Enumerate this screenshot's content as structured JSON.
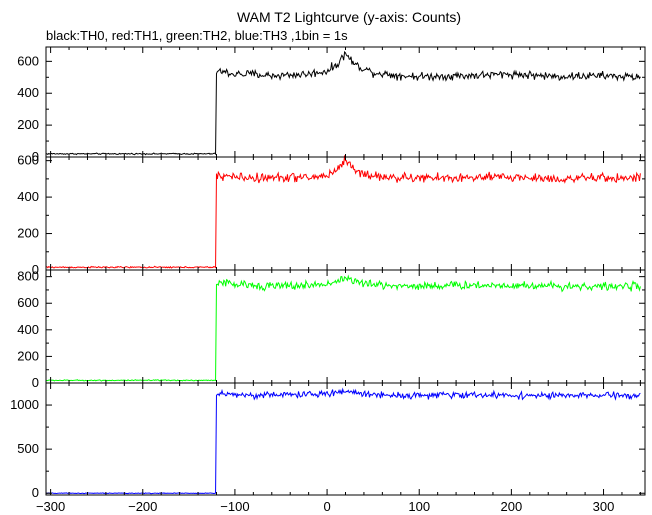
{
  "chart_data": {
    "type": "line",
    "title": "WAM T2 Lightcurve (y-axis: Counts)",
    "subtitle": "black:TH0, red:TH1, green:TH2, blue:TH3 ,1bin = 1s",
    "xlabel": "",
    "ylabel": "",
    "xlim": [
      -305,
      345
    ],
    "x_ticks": [
      -300,
      -200,
      -100,
      0,
      100,
      200,
      300
    ],
    "x_tick_labels": [
      "−300",
      "−200",
      "−100",
      "0",
      "100",
      "200",
      "300"
    ],
    "grid": false,
    "legend": "none",
    "bin_seconds": 1,
    "trigger_time": -120,
    "panels": [
      {
        "name": "TH0",
        "color": "#000000",
        "ylim": [
          0,
          690
        ],
        "y_ticks": [
          0,
          200,
          400,
          600
        ],
        "pre_trigger_level": 20,
        "post_trigger_level": 510,
        "noise_amplitude": 25,
        "peak": {
          "x": 20,
          "value": 650
        },
        "points": [
          [
            -305,
            20
          ],
          [
            -200,
            20
          ],
          [
            -121,
            20
          ],
          [
            -120,
            540
          ],
          [
            -100,
            520
          ],
          [
            -80,
            520
          ],
          [
            -60,
            510
          ],
          [
            -40,
            515
          ],
          [
            -20,
            520
          ],
          [
            0,
            540
          ],
          [
            10,
            575
          ],
          [
            20,
            650
          ],
          [
            30,
            580
          ],
          [
            50,
            530
          ],
          [
            80,
            510
          ],
          [
            100,
            505
          ],
          [
            150,
            510
          ],
          [
            200,
            520
          ],
          [
            250,
            505
          ],
          [
            300,
            510
          ],
          [
            340,
            500
          ]
        ]
      },
      {
        "name": "TH1",
        "color": "#ff0000",
        "ylim": [
          0,
          620
        ],
        "y_ticks": [
          0,
          200,
          400,
          600
        ],
        "pre_trigger_level": 15,
        "post_trigger_level": 505,
        "noise_amplitude": 25,
        "peak": {
          "x": 20,
          "value": 610
        },
        "points": [
          [
            -305,
            15
          ],
          [
            -200,
            15
          ],
          [
            -121,
            15
          ],
          [
            -120,
            520
          ],
          [
            -100,
            510
          ],
          [
            -80,
            505
          ],
          [
            -60,
            505
          ],
          [
            -40,
            510
          ],
          [
            -20,
            505
          ],
          [
            0,
            520
          ],
          [
            10,
            545
          ],
          [
            20,
            610
          ],
          [
            30,
            545
          ],
          [
            50,
            515
          ],
          [
            80,
            505
          ],
          [
            100,
            505
          ],
          [
            150,
            505
          ],
          [
            200,
            510
          ],
          [
            250,
            500
          ],
          [
            300,
            505
          ],
          [
            340,
            505
          ]
        ]
      },
      {
        "name": "TH2",
        "color": "#00ff00",
        "ylim": [
          0,
          850
        ],
        "y_ticks": [
          0,
          200,
          400,
          600,
          800
        ],
        "pre_trigger_level": 20,
        "post_trigger_level": 730,
        "noise_amplitude": 30,
        "peak": {
          "x": 20,
          "value": 790
        },
        "points": [
          [
            -305,
            20
          ],
          [
            -200,
            20
          ],
          [
            -121,
            20
          ],
          [
            -120,
            760
          ],
          [
            -100,
            740
          ],
          [
            -80,
            735
          ],
          [
            -60,
            730
          ],
          [
            -40,
            730
          ],
          [
            -20,
            735
          ],
          [
            0,
            745
          ],
          [
            20,
            790
          ],
          [
            40,
            745
          ],
          [
            80,
            730
          ],
          [
            100,
            730
          ],
          [
            150,
            735
          ],
          [
            200,
            735
          ],
          [
            250,
            730
          ],
          [
            300,
            725
          ],
          [
            340,
            730
          ]
        ]
      },
      {
        "name": "TH3",
        "color": "#0000ff",
        "ylim": [
          -20,
          1250
        ],
        "y_ticks": [
          0,
          500,
          1000
        ],
        "pre_trigger_level": 0,
        "post_trigger_level": 1110,
        "noise_amplitude": 35,
        "peak": {
          "x": 20,
          "value": 1160
        },
        "points": [
          [
            -305,
            0
          ],
          [
            -200,
            0
          ],
          [
            -121,
            0
          ],
          [
            -120,
            1130
          ],
          [
            -100,
            1120
          ],
          [
            -80,
            1110
          ],
          [
            -60,
            1115
          ],
          [
            -40,
            1120
          ],
          [
            -20,
            1120
          ],
          [
            0,
            1125
          ],
          [
            20,
            1160
          ],
          [
            40,
            1125
          ],
          [
            80,
            1110
          ],
          [
            100,
            1110
          ],
          [
            150,
            1115
          ],
          [
            200,
            1110
          ],
          [
            250,
            1105
          ],
          [
            300,
            1110
          ],
          [
            340,
            1105
          ]
        ]
      }
    ]
  }
}
